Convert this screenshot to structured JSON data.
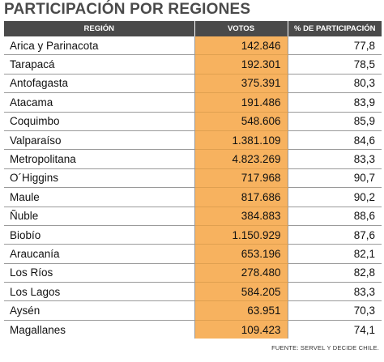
{
  "title": "PARTICIPACIÓN POR REGIONES",
  "table": {
    "headers": [
      "REGIÓN",
      "VOTOS",
      "% DE PARTICIPACIÓN"
    ],
    "rows": [
      {
        "region": "Arica y Parinacota",
        "votos": "142.846",
        "participacion": "77,8"
      },
      {
        "region": "Tarapacá",
        "votos": "192.301",
        "participacion": "78,5"
      },
      {
        "region": "Antofagasta",
        "votos": "375.391",
        "participacion": "80,3"
      },
      {
        "region": "Atacama",
        "votos": "191.486",
        "participacion": "83,9"
      },
      {
        "region": "Coquimbo",
        "votos": "548.606",
        "participacion": "85,9"
      },
      {
        "region": "Valparaíso",
        "votos": "1.381.109",
        "participacion": "84,6"
      },
      {
        "region": "Metropolitana",
        "votos": "4.823.269",
        "participacion": "83,3"
      },
      {
        "region": "O´Higgins",
        "votos": "717.968",
        "participacion": "90,7"
      },
      {
        "region": "Maule",
        "votos": "817.686",
        "participacion": "90,2"
      },
      {
        "region": "Ñuble",
        "votos": "384.883",
        "participacion": "88,6"
      },
      {
        "region": "Biobío",
        "votos": "1.150.929",
        "participacion": "87,6"
      },
      {
        "region": "Araucanía",
        "votos": "653.196",
        "participacion": "82,1"
      },
      {
        "region": "Los Ríos",
        "votos": "278.480",
        "participacion": "82,8"
      },
      {
        "region": "Los Lagos",
        "votos": "584.205",
        "participacion": "83,3"
      },
      {
        "region": "Aysén",
        "votos": "63.951",
        "participacion": "70,3"
      },
      {
        "region": "Magallanes",
        "votos": "109.423",
        "participacion": "74,1"
      }
    ]
  },
  "source": "FUENTE: SERVEL Y DECIDE CHILE.",
  "colors": {
    "header_bg": "#4a4a4a",
    "votes_highlight": "#f7b25f",
    "title": "#4a4a4a"
  }
}
